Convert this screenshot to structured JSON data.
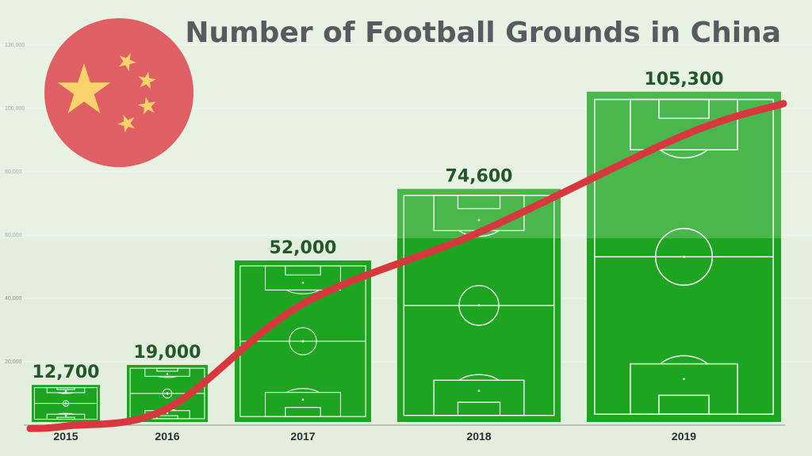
{
  "chart_data": {
    "type": "bar",
    "title": "Number of Football Grounds in China",
    "categories": [
      "2015",
      "2016",
      "2017",
      "2018",
      "2019"
    ],
    "values": [
      12700,
      19000,
      52000,
      74600,
      105300
    ],
    "value_labels": [
      "12,700",
      "19,000",
      "52,000",
      "74,600",
      "105,300"
    ],
    "ytick_labels": [
      "20,000",
      "40,000",
      "60,000",
      "80,000",
      "100,000",
      "120,000"
    ],
    "grid": true,
    "trend_line": true
  },
  "colors": {
    "background": "#e2efdc",
    "pitch": "#1da521",
    "trend_line": "#d8373e",
    "flag_red": "#d8373e",
    "flag_star": "#f7c948",
    "value_label": "#23572a",
    "title": "#2e3238"
  },
  "icons": {
    "flag": "china-flag-icon"
  }
}
